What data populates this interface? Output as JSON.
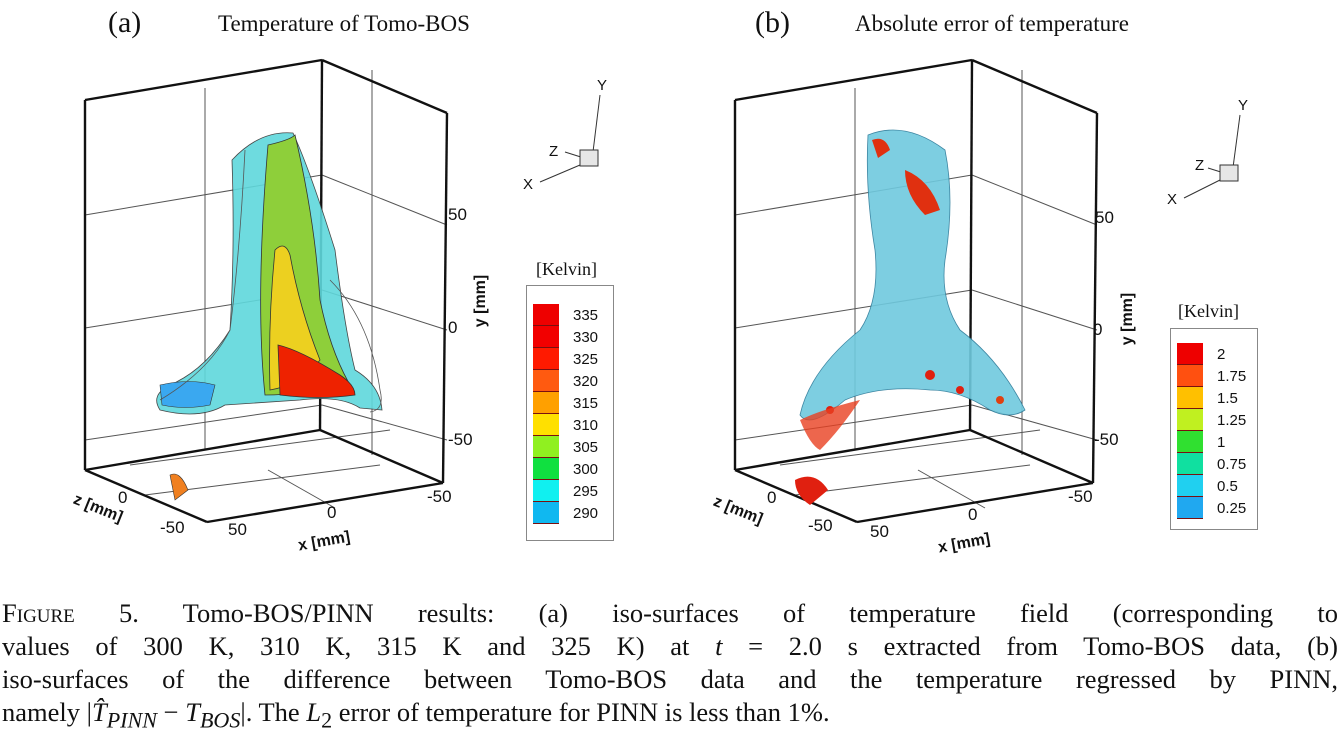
{
  "panels": [
    {
      "label": "(a)",
      "title": "Temperature of Tomo-BOS",
      "axes": {
        "y_ticks": [
          "50",
          "0",
          "-50"
        ],
        "y_label": "y [mm]",
        "z_ticks": [
          "0",
          "-50"
        ],
        "z_label": "z [mm]",
        "x_ticks": [
          "50",
          "0",
          "-50"
        ],
        "x_label": "x [mm]"
      },
      "triad": {
        "y": "Y",
        "z": "Z",
        "x": "X"
      },
      "colorbar": {
        "title": "[Kelvin]",
        "levels": [
          "335",
          "330",
          "325",
          "320",
          "315",
          "310",
          "305",
          "300",
          "295",
          "290"
        ],
        "colors": [
          "#ee0000",
          "#f20000",
          "#ff1a00",
          "#ff5a10",
          "#ffa000",
          "#ffe000",
          "#90f020",
          "#10e040",
          "#10f0f0",
          "#10b8f0",
          "#1070f0"
        ]
      }
    },
    {
      "label": "(b)",
      "title": "Absolute error of temperature",
      "axes": {
        "y_ticks": [
          "50",
          "0",
          "-50"
        ],
        "y_label": "y [mm]",
        "z_ticks": [
          "0",
          "-50"
        ],
        "z_label": "z [mm]",
        "x_ticks": [
          "50",
          "0",
          "-50"
        ],
        "x_label": "x [mm]"
      },
      "triad": {
        "y": "Y",
        "z": "Z",
        "x": "X"
      },
      "colorbar": {
        "title": "[Kelvin]",
        "levels": [
          "2",
          "1.75",
          "1.5",
          "1.25",
          "1",
          "0.75",
          "0.5",
          "0.25"
        ],
        "colors": [
          "#ee0000",
          "#ff5010",
          "#ffc000",
          "#c0f020",
          "#30e030",
          "#10e0a0",
          "#20d0f0",
          "#20a8f0",
          "#1060e0"
        ]
      }
    }
  ],
  "caption": {
    "figure_label": "Figure 5.",
    "line1": "Tomo-BOS/PINN results: (a) iso-surfaces of temperature field (corresponding to",
    "line2_a": "values of 300 K, 310 K, 315 K and 325 K) at",
    "line2_t": "t",
    "line2_b": "= 2.0 s extracted from Tomo-BOS data, (b)",
    "line3": "iso-surfaces of the difference between Tomo-BOS data and the temperature regressed by PINN,",
    "line4_a": "namely |",
    "line4_T1": "T̂",
    "line4_sub1": "PINN",
    "line4_minus": " − ",
    "line4_T2": "T",
    "line4_sub2": "BOS",
    "line4_b": "|. The",
    "line4_L": "L",
    "line4_Lsub": "2",
    "line4_c": "error of temperature for PINN is less than 1%."
  }
}
